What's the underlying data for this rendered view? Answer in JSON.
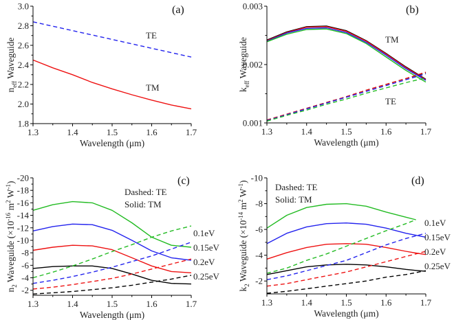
{
  "chart_data": [
    {
      "type": "line",
      "panel_label": "(a)",
      "xlabel": "Wavelength (μm)",
      "ylabel_parts": [
        [
          "n",
          "n"
        ],
        [
          "eff",
          "sub"
        ],
        [
          " Waveguide",
          "n"
        ]
      ],
      "xlim": [
        1.3,
        1.7
      ],
      "ylim": [
        1.8,
        3.0
      ],
      "xticks": [
        1.3,
        1.4,
        1.5,
        1.6,
        1.7
      ],
      "yticks": [
        1.8,
        2.0,
        2.2,
        2.4,
        2.6,
        2.8,
        3.0
      ],
      "ytick_labels": [
        "1.8",
        "2.0",
        "2.2",
        "2.4",
        "2.6",
        "2.8",
        "3.0"
      ],
      "x": [
        1.3,
        1.35,
        1.4,
        1.45,
        1.5,
        1.55,
        1.6,
        1.65,
        1.7
      ],
      "series": [
        {
          "name": "TE",
          "style": "dashed",
          "color": "#2222ee",
          "values": [
            2.84,
            2.795,
            2.75,
            2.705,
            2.66,
            2.615,
            2.57,
            2.525,
            2.48
          ]
        },
        {
          "name": "TM",
          "style": "solid",
          "color": "#ee1111",
          "values": [
            2.45,
            2.37,
            2.3,
            2.22,
            2.155,
            2.095,
            2.04,
            1.99,
            1.95
          ]
        }
      ],
      "annotations": [
        "TE",
        "TM"
      ]
    },
    {
      "type": "line",
      "panel_label": "(b)",
      "xlabel": "Wavelength (μm)",
      "ylabel_parts": [
        [
          "k",
          "n"
        ],
        [
          "eff",
          "sub"
        ],
        [
          " Waveguide",
          "n"
        ]
      ],
      "xlim": [
        1.3,
        1.7
      ],
      "ylim": [
        0.001,
        0.003
      ],
      "xticks": [
        1.3,
        1.4,
        1.5,
        1.6,
        1.7
      ],
      "yticks": [
        0.001,
        0.002,
        0.003
      ],
      "ytick_labels": [
        "0.001",
        "0.002",
        "0.003"
      ],
      "x": [
        1.3,
        1.35,
        1.4,
        1.45,
        1.5,
        1.55,
        1.6,
        1.65,
        1.7
      ],
      "series": [
        {
          "name": "TM 0.25eV",
          "style": "solid",
          "color": "#000000",
          "values": [
            0.00242,
            0.00256,
            0.00265,
            0.00266,
            0.00258,
            0.00241,
            0.00219,
            0.00196,
            0.00175
          ]
        },
        {
          "name": "TM 0.2eV",
          "style": "solid",
          "color": "#ee1111",
          "values": [
            0.00241,
            0.00255,
            0.00264,
            0.00265,
            0.00257,
            0.0024,
            0.00218,
            0.00195,
            0.00174
          ]
        },
        {
          "name": "TM 0.15eV",
          "style": "solid",
          "color": "#2222ee",
          "values": [
            0.0024,
            0.00254,
            0.00262,
            0.00263,
            0.00255,
            0.00238,
            0.00216,
            0.00193,
            0.00173
          ]
        },
        {
          "name": "TM 0.1eV",
          "style": "solid",
          "color": "#22bb22",
          "values": [
            0.00239,
            0.00252,
            0.0026,
            0.00261,
            0.00253,
            0.00236,
            0.00213,
            0.0019,
            0.0017
          ]
        },
        {
          "name": "TE 0.25eV",
          "style": "dashed",
          "color": "#000000",
          "values": [
            0.00105,
            0.00115,
            0.00125,
            0.00135,
            0.00145,
            0.00156,
            0.00166,
            0.00176,
            0.00186
          ]
        },
        {
          "name": "TE 0.2eV",
          "style": "dashed",
          "color": "#ee1111",
          "values": [
            0.00105,
            0.00115,
            0.00125,
            0.00135,
            0.00145,
            0.00156,
            0.00166,
            0.00176,
            0.00187
          ]
        },
        {
          "name": "TE 0.15eV",
          "style": "dashed",
          "color": "#2222ee",
          "values": [
            0.00104,
            0.00114,
            0.00124,
            0.00134,
            0.00144,
            0.00154,
            0.00164,
            0.00174,
            0.00184
          ]
        },
        {
          "name": "TE 0.1eV",
          "style": "dashed",
          "color": "#22bb22",
          "values": [
            0.00103,
            0.00113,
            0.00122,
            0.00132,
            0.00141,
            0.00151,
            0.0016,
            0.00169,
            0.00177
          ]
        }
      ],
      "annotations": [
        "TM",
        "TE"
      ]
    },
    {
      "type": "line",
      "panel_label": "(c)",
      "xlabel": "Wavelength (μm)",
      "ylabel_parts": [
        [
          "n",
          "n"
        ],
        [
          "2",
          "sub"
        ],
        [
          " Waveguide (×10",
          "n"
        ],
        [
          "-16",
          "sup"
        ],
        [
          " m",
          "n"
        ],
        [
          "2",
          "sup"
        ],
        [
          " W",
          "n"
        ],
        [
          "-1",
          "sup"
        ],
        [
          ")",
          "n"
        ]
      ],
      "xlim": [
        1.3,
        1.7
      ],
      "ylim": [
        -1.2,
        -20
      ],
      "xticks": [
        1.3,
        1.4,
        1.5,
        1.6,
        1.7
      ],
      "yticks": [
        -2,
        -4,
        -6,
        -8,
        -10,
        -12,
        -14,
        -16,
        -18,
        -20
      ],
      "ytick_labels": [
        "-2",
        "-4",
        "-6",
        "-8",
        "-10",
        "-12",
        "-14",
        "-16",
        "-18",
        "-20"
      ],
      "x": [
        1.3,
        1.35,
        1.4,
        1.45,
        1.5,
        1.55,
        1.6,
        1.65,
        1.7
      ],
      "series": [
        {
          "name": "TM 0.1eV",
          "style": "solid",
          "color": "#22bb22",
          "values": [
            -14.8,
            -15.7,
            -16.2,
            -16.0,
            -14.8,
            -12.8,
            -10.5,
            -9.2,
            -8.9
          ]
        },
        {
          "name": "TM 0.15eV",
          "style": "solid",
          "color": "#2222ee",
          "values": [
            -11.5,
            -12.2,
            -12.6,
            -12.5,
            -11.6,
            -10.0,
            -8.3,
            -7.2,
            -6.8
          ]
        },
        {
          "name": "TM 0.2eV",
          "style": "solid",
          "color": "#ee1111",
          "values": [
            -8.4,
            -8.9,
            -9.2,
            -9.1,
            -8.5,
            -7.2,
            -5.9,
            -5.0,
            -4.8
          ]
        },
        {
          "name": "TM 0.25eV",
          "style": "solid",
          "color": "#000000",
          "values": [
            -5.5,
            -5.8,
            -5.9,
            -5.9,
            -5.5,
            -4.6,
            -3.6,
            -3.1,
            -3.0
          ]
        },
        {
          "name": "TE 0.1eV",
          "style": "dashed",
          "color": "#22bb22",
          "values": [
            -4.0,
            -4.9,
            -5.9,
            -7.0,
            -8.2,
            -9.3,
            -10.5,
            -11.5,
            -12.3
          ]
        },
        {
          "name": "TE 0.15eV",
          "style": "dashed",
          "color": "#2222ee",
          "values": [
            -3.1,
            -3.6,
            -4.2,
            -4.9,
            -5.7,
            -6.6,
            -7.5,
            -8.6,
            -9.7
          ]
        },
        {
          "name": "TE 0.2eV",
          "style": "dashed",
          "color": "#ee1111",
          "values": [
            -2.2,
            -2.5,
            -2.9,
            -3.4,
            -3.9,
            -4.6,
            -5.4,
            -6.2,
            -7.0
          ]
        },
        {
          "name": "TE 0.25eV",
          "style": "dashed",
          "color": "#000000",
          "values": [
            -1.4,
            -1.6,
            -1.8,
            -2.1,
            -2.4,
            -2.8,
            -3.3,
            -3.8,
            -4.4
          ]
        }
      ],
      "legend_note": [
        "Dashed: TE",
        "Solid: TM"
      ],
      "annotations": [
        "0.1eV",
        "0.15eV",
        "0.2eV",
        "0.25eV"
      ]
    },
    {
      "type": "line",
      "panel_label": "(d)",
      "xlabel": "Wavelength (μm)",
      "ylabel_parts": [
        [
          "k",
          "n"
        ],
        [
          "2",
          "sub"
        ],
        [
          " Waveguide (×10",
          "n"
        ],
        [
          "-14",
          "sup"
        ],
        [
          " m",
          "n"
        ],
        [
          "2",
          "sup"
        ],
        [
          " W",
          "n"
        ],
        [
          "-1",
          "sup"
        ],
        [
          ")",
          "n"
        ]
      ],
      "xlim": [
        1.3,
        1.7
      ],
      "ylim": [
        -1.0,
        -10
      ],
      "xticks": [
        1.3,
        1.4,
        1.5,
        1.6,
        1.7
      ],
      "yticks": [
        -2,
        -4,
        -6,
        -8,
        -10
      ],
      "ytick_labels": [
        "-2",
        "-4",
        "-6",
        "-8",
        "-10"
      ],
      "x": [
        1.3,
        1.35,
        1.4,
        1.45,
        1.5,
        1.55,
        1.6,
        1.65,
        1.675,
        1.7
      ],
      "series": [
        {
          "name": "TM 0.1eV",
          "style": "solid",
          "color": "#22bb22",
          "values": [
            -6.1,
            -7.1,
            -7.7,
            -7.95,
            -8.0,
            -7.8,
            -7.35,
            -6.95,
            -6.75,
            null
          ]
        },
        {
          "name": "TM 0.15eV",
          "style": "solid",
          "color": "#2222ee",
          "values": [
            -4.9,
            -5.7,
            -6.2,
            -6.45,
            -6.5,
            -6.4,
            -6.1,
            -5.7,
            -5.55,
            -5.4
          ]
        },
        {
          "name": "TM 0.2eV",
          "style": "solid",
          "color": "#ee1111",
          "values": [
            -3.7,
            -4.2,
            -4.6,
            -4.85,
            -4.9,
            -4.85,
            -4.6,
            -4.3,
            -4.17,
            -4.05
          ]
        },
        {
          "name": "TM 0.25eV",
          "style": "solid",
          "color": "#000000",
          "values": [
            -2.5,
            -2.8,
            -3.1,
            -3.25,
            -3.3,
            -3.25,
            -3.1,
            -2.9,
            -2.82,
            -2.75
          ]
        },
        {
          "name": "TE 0.1eV",
          "style": "dashed",
          "color": "#22bb22",
          "values": [
            -2.6,
            -3.0,
            -3.6,
            -4.1,
            -4.7,
            -5.3,
            -5.9,
            -6.45,
            -6.75,
            null
          ]
        },
        {
          "name": "TE 0.15eV",
          "style": "dashed",
          "color": "#2222ee",
          "values": [
            -2.1,
            -2.4,
            -2.8,
            -3.2,
            -3.6,
            -4.2,
            -4.8,
            -5.3,
            -5.5,
            -5.7
          ]
        },
        {
          "name": "TE 0.2eV",
          "style": "dashed",
          "color": "#ee1111",
          "values": [
            -1.6,
            -1.8,
            -2.1,
            -2.4,
            -2.7,
            -3.1,
            -3.5,
            -3.9,
            -4.1,
            -4.3
          ]
        },
        {
          "name": "TE 0.25eV",
          "style": "dashed",
          "color": "#000000",
          "values": [
            -1.05,
            -1.2,
            -1.4,
            -1.6,
            -1.8,
            -2.0,
            -2.3,
            -2.5,
            -2.65,
            -2.8
          ]
        }
      ],
      "legend_note": [
        "Dashed: TE",
        "Solid: TM"
      ],
      "annotations": [
        "0.1eV",
        "0.15eV",
        "0.2eV",
        "0.25eV"
      ]
    }
  ]
}
